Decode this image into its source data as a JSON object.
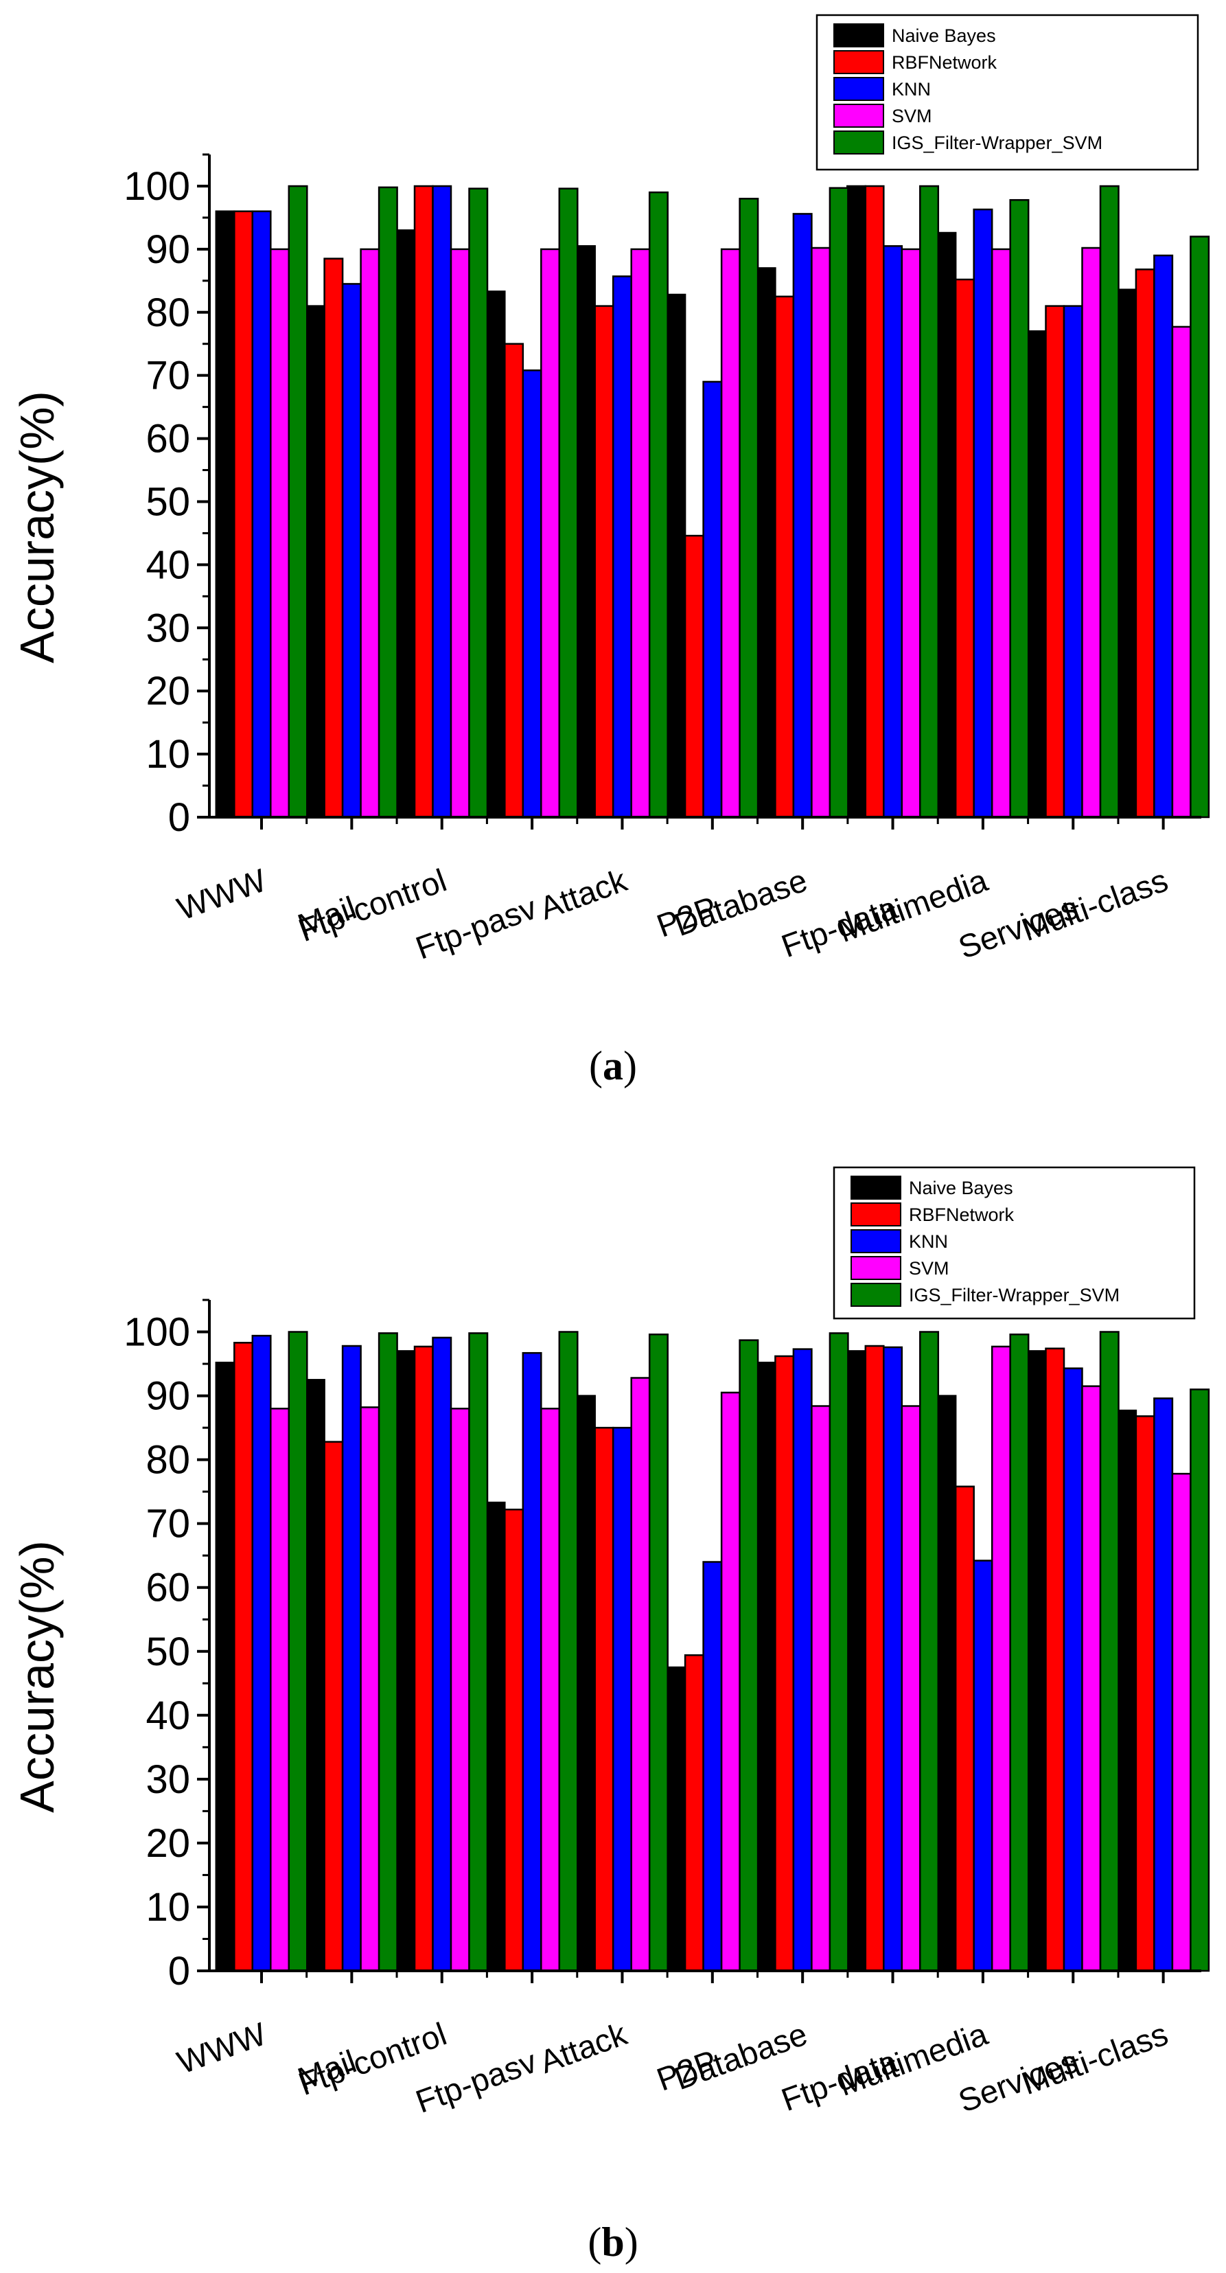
{
  "chart_data": [
    {
      "type": "bar",
      "caption_letter": "a",
      "ylabel": "Accuracy(%)",
      "ylim": [
        0,
        105
      ],
      "yticks": [
        0,
        10,
        20,
        30,
        40,
        50,
        60,
        70,
        80,
        90,
        100
      ],
      "legend_position": "top-right",
      "categories": [
        "WWW",
        "Mail",
        "Ftp-control",
        "Ftp-pasv",
        "Attack",
        "P2P",
        "Database",
        "Ftp-data",
        "Multimedia",
        "Services",
        "Multi-class"
      ],
      "series": [
        {
          "name": "Naive Bayes",
          "color": "#000000",
          "values": [
            96,
            81,
            93,
            83.3,
            90.5,
            82.8,
            87,
            100,
            92.6,
            77,
            83.6
          ]
        },
        {
          "name": "RBFNetwork",
          "color": "#ff0000",
          "values": [
            96,
            88.5,
            100,
            75,
            81,
            44.6,
            82.5,
            100,
            85.2,
            81,
            86.8
          ]
        },
        {
          "name": "KNN",
          "color": "#0000ff",
          "values": [
            96,
            84.5,
            100,
            70.8,
            85.7,
            69,
            95.6,
            90.5,
            96.3,
            81,
            89
          ]
        },
        {
          "name": "SVM",
          "color": "#ff00ff",
          "values": [
            90,
            90,
            90,
            90,
            90,
            90,
            90.2,
            90,
            90,
            90.2,
            77.7
          ]
        },
        {
          "name": "IGS_Filter-Wrapper_SVM",
          "color": "#008000",
          "values": [
            100,
            99.8,
            99.6,
            99.6,
            99,
            98,
            99.7,
            100,
            97.8,
            100,
            92
          ]
        }
      ]
    },
    {
      "type": "bar",
      "caption_letter": "b",
      "ylabel": "Accuracy(%)",
      "ylim": [
        0,
        105
      ],
      "yticks": [
        0,
        10,
        20,
        30,
        40,
        50,
        60,
        70,
        80,
        90,
        100
      ],
      "legend_position": "top-right",
      "categories": [
        "WWW",
        "Mail",
        "Ftp-control",
        "Ftp-pasv",
        "Attack",
        "P2P",
        "Database",
        "Ftp-data",
        "Multimedia",
        "Services",
        "Multi-class"
      ],
      "series": [
        {
          "name": "Naive Bayes",
          "color": "#000000",
          "values": [
            95.2,
            92.5,
            97,
            73.3,
            90,
            47.5,
            95.2,
            97,
            90,
            97,
            87.7
          ]
        },
        {
          "name": "RBFNetwork",
          "color": "#ff0000",
          "values": [
            98.3,
            82.8,
            97.7,
            72.2,
            85,
            49.4,
            96.2,
            97.8,
            75.8,
            97.4,
            86.8
          ]
        },
        {
          "name": "KNN",
          "color": "#0000ff",
          "values": [
            99.4,
            97.8,
            99.1,
            96.7,
            85,
            64,
            97.3,
            97.6,
            64.2,
            94.3,
            89.6
          ]
        },
        {
          "name": "SVM",
          "color": "#ff00ff",
          "values": [
            88,
            88.2,
            88,
            88,
            92.8,
            90.5,
            88.4,
            88.4,
            97.7,
            91.5,
            77.8
          ]
        },
        {
          "name": "IGS_Filter-Wrapper_SVM",
          "color": "#008000",
          "values": [
            100,
            99.8,
            99.8,
            100,
            99.6,
            98.7,
            99.8,
            100,
            99.6,
            100,
            91
          ]
        }
      ]
    }
  ]
}
